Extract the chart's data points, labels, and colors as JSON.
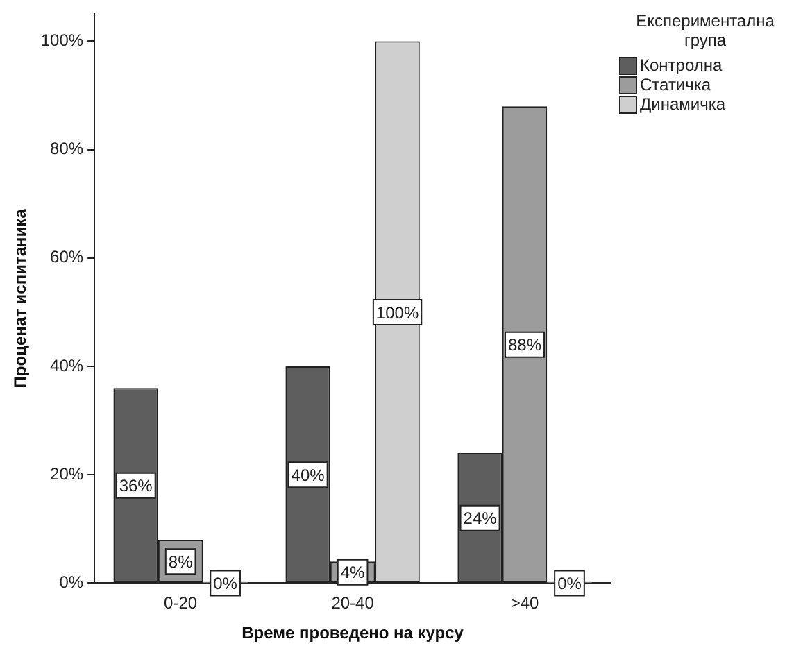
{
  "chart_data": {
    "type": "bar",
    "xlabel": "Време проведено на курсу",
    "ylabel": "Проценат испитаника",
    "legend_title": "Експериментална група",
    "legend": "top right",
    "grid": false,
    "categories": [
      "0-20",
      "20-40",
      ">40"
    ],
    "ylim": [
      0,
      105
    ],
    "yticks": [
      {
        "value": 0,
        "label": "0%"
      },
      {
        "value": 20,
        "label": "20%"
      },
      {
        "value": 40,
        "label": "40%"
      },
      {
        "value": 60,
        "label": "60%"
      },
      {
        "value": 80,
        "label": "80%"
      },
      {
        "value": 100,
        "label": "100%"
      }
    ],
    "series": [
      {
        "name": "Контролна",
        "color": "#5e5e5e",
        "values": [
          36,
          40,
          24
        ],
        "value_labels": [
          "36%",
          "40%",
          "24%"
        ]
      },
      {
        "name": "Статичка",
        "color": "#9c9c9c",
        "values": [
          8,
          4,
          88
        ],
        "value_labels": [
          "8%",
          "4%",
          "88%"
        ]
      },
      {
        "name": "Динамичка",
        "color": "#cfcfcf",
        "values": [
          0,
          100,
          0
        ],
        "value_labels": [
          "0%",
          "100%",
          "0%"
        ]
      }
    ]
  }
}
